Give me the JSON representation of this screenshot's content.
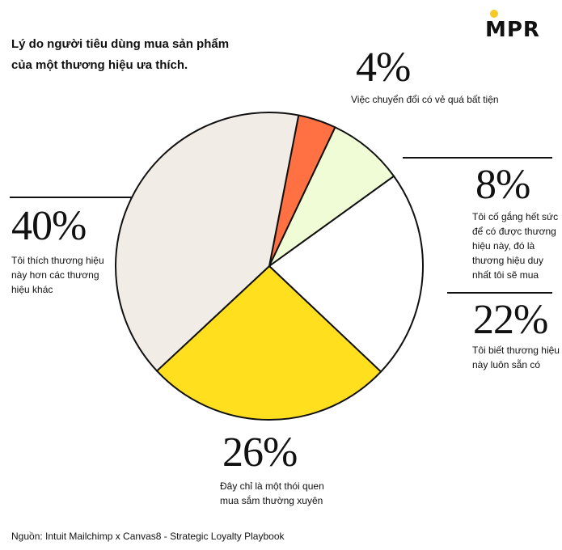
{
  "title_line1": "Lý do người tiêu dùng mua sản phẩm",
  "title_line2": "của một thương hiệu ưa thích.",
  "logo_text": "MPR",
  "source": "Nguồn: Intuit Mailchimp x Canvas8 - Strategic Loyalty Playbook",
  "chart_data": {
    "type": "pie",
    "title": "Lý do người tiêu dùng mua sản phẩm của một thương hiệu ưa thích.",
    "slices": [
      {
        "label": "Việc chuyển đổi có vẻ quá bất tiện",
        "value": 4,
        "display": "4%",
        "color": "#ff7043"
      },
      {
        "label": "Tôi cố gắng hết sức để có được thương hiệu này, đó là thương hiệu duy nhất tôi sẽ mua",
        "value": 8,
        "display": "8%",
        "color": "#f0fcd6"
      },
      {
        "label": "Tôi biết thương hiệu này luôn sẵn có",
        "value": 22,
        "display": "22%",
        "color": "#ffffff"
      },
      {
        "label": "Đây chỉ là một thói quen mua sắm thường xuyên",
        "value": 26,
        "display": "26%",
        "color": "#ffdf1e"
      },
      {
        "label": "Tôi thích thương hiệu này hơn các thương hiệu khác",
        "value": 40,
        "display": "40%",
        "color": "#f2ece6"
      }
    ]
  }
}
